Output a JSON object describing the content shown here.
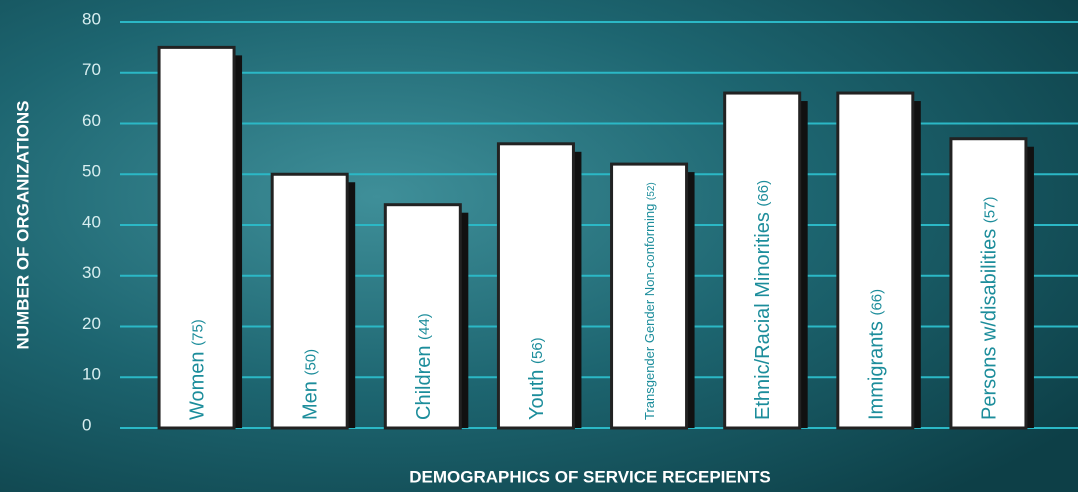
{
  "chart_data": {
    "type": "bar",
    "x_label": "DEMOGRAPHICS OF SERVICE RECEPIENTS",
    "y_label": "NUMBER OF ORGANIZATIONS",
    "categories": [
      "Women",
      "Men",
      "Children",
      "Youth",
      "Transgender Gender Non-conforming",
      "Ethnic/Racial Minorities",
      "Immigrants",
      "Persons w/disabilities"
    ],
    "values": [
      75,
      50,
      44,
      56,
      52,
      66,
      66,
      57
    ],
    "value_labels": [
      "(75)",
      "(50)",
      "(44)",
      "(56)",
      "(52)",
      "(66)",
      "(66)",
      "(57)"
    ],
    "color": "#ffffff",
    "ylim": [
      0,
      80
    ],
    "yticks": [
      0,
      10,
      20,
      30,
      40,
      50,
      60,
      70,
      80
    ],
    "grid": true
  }
}
